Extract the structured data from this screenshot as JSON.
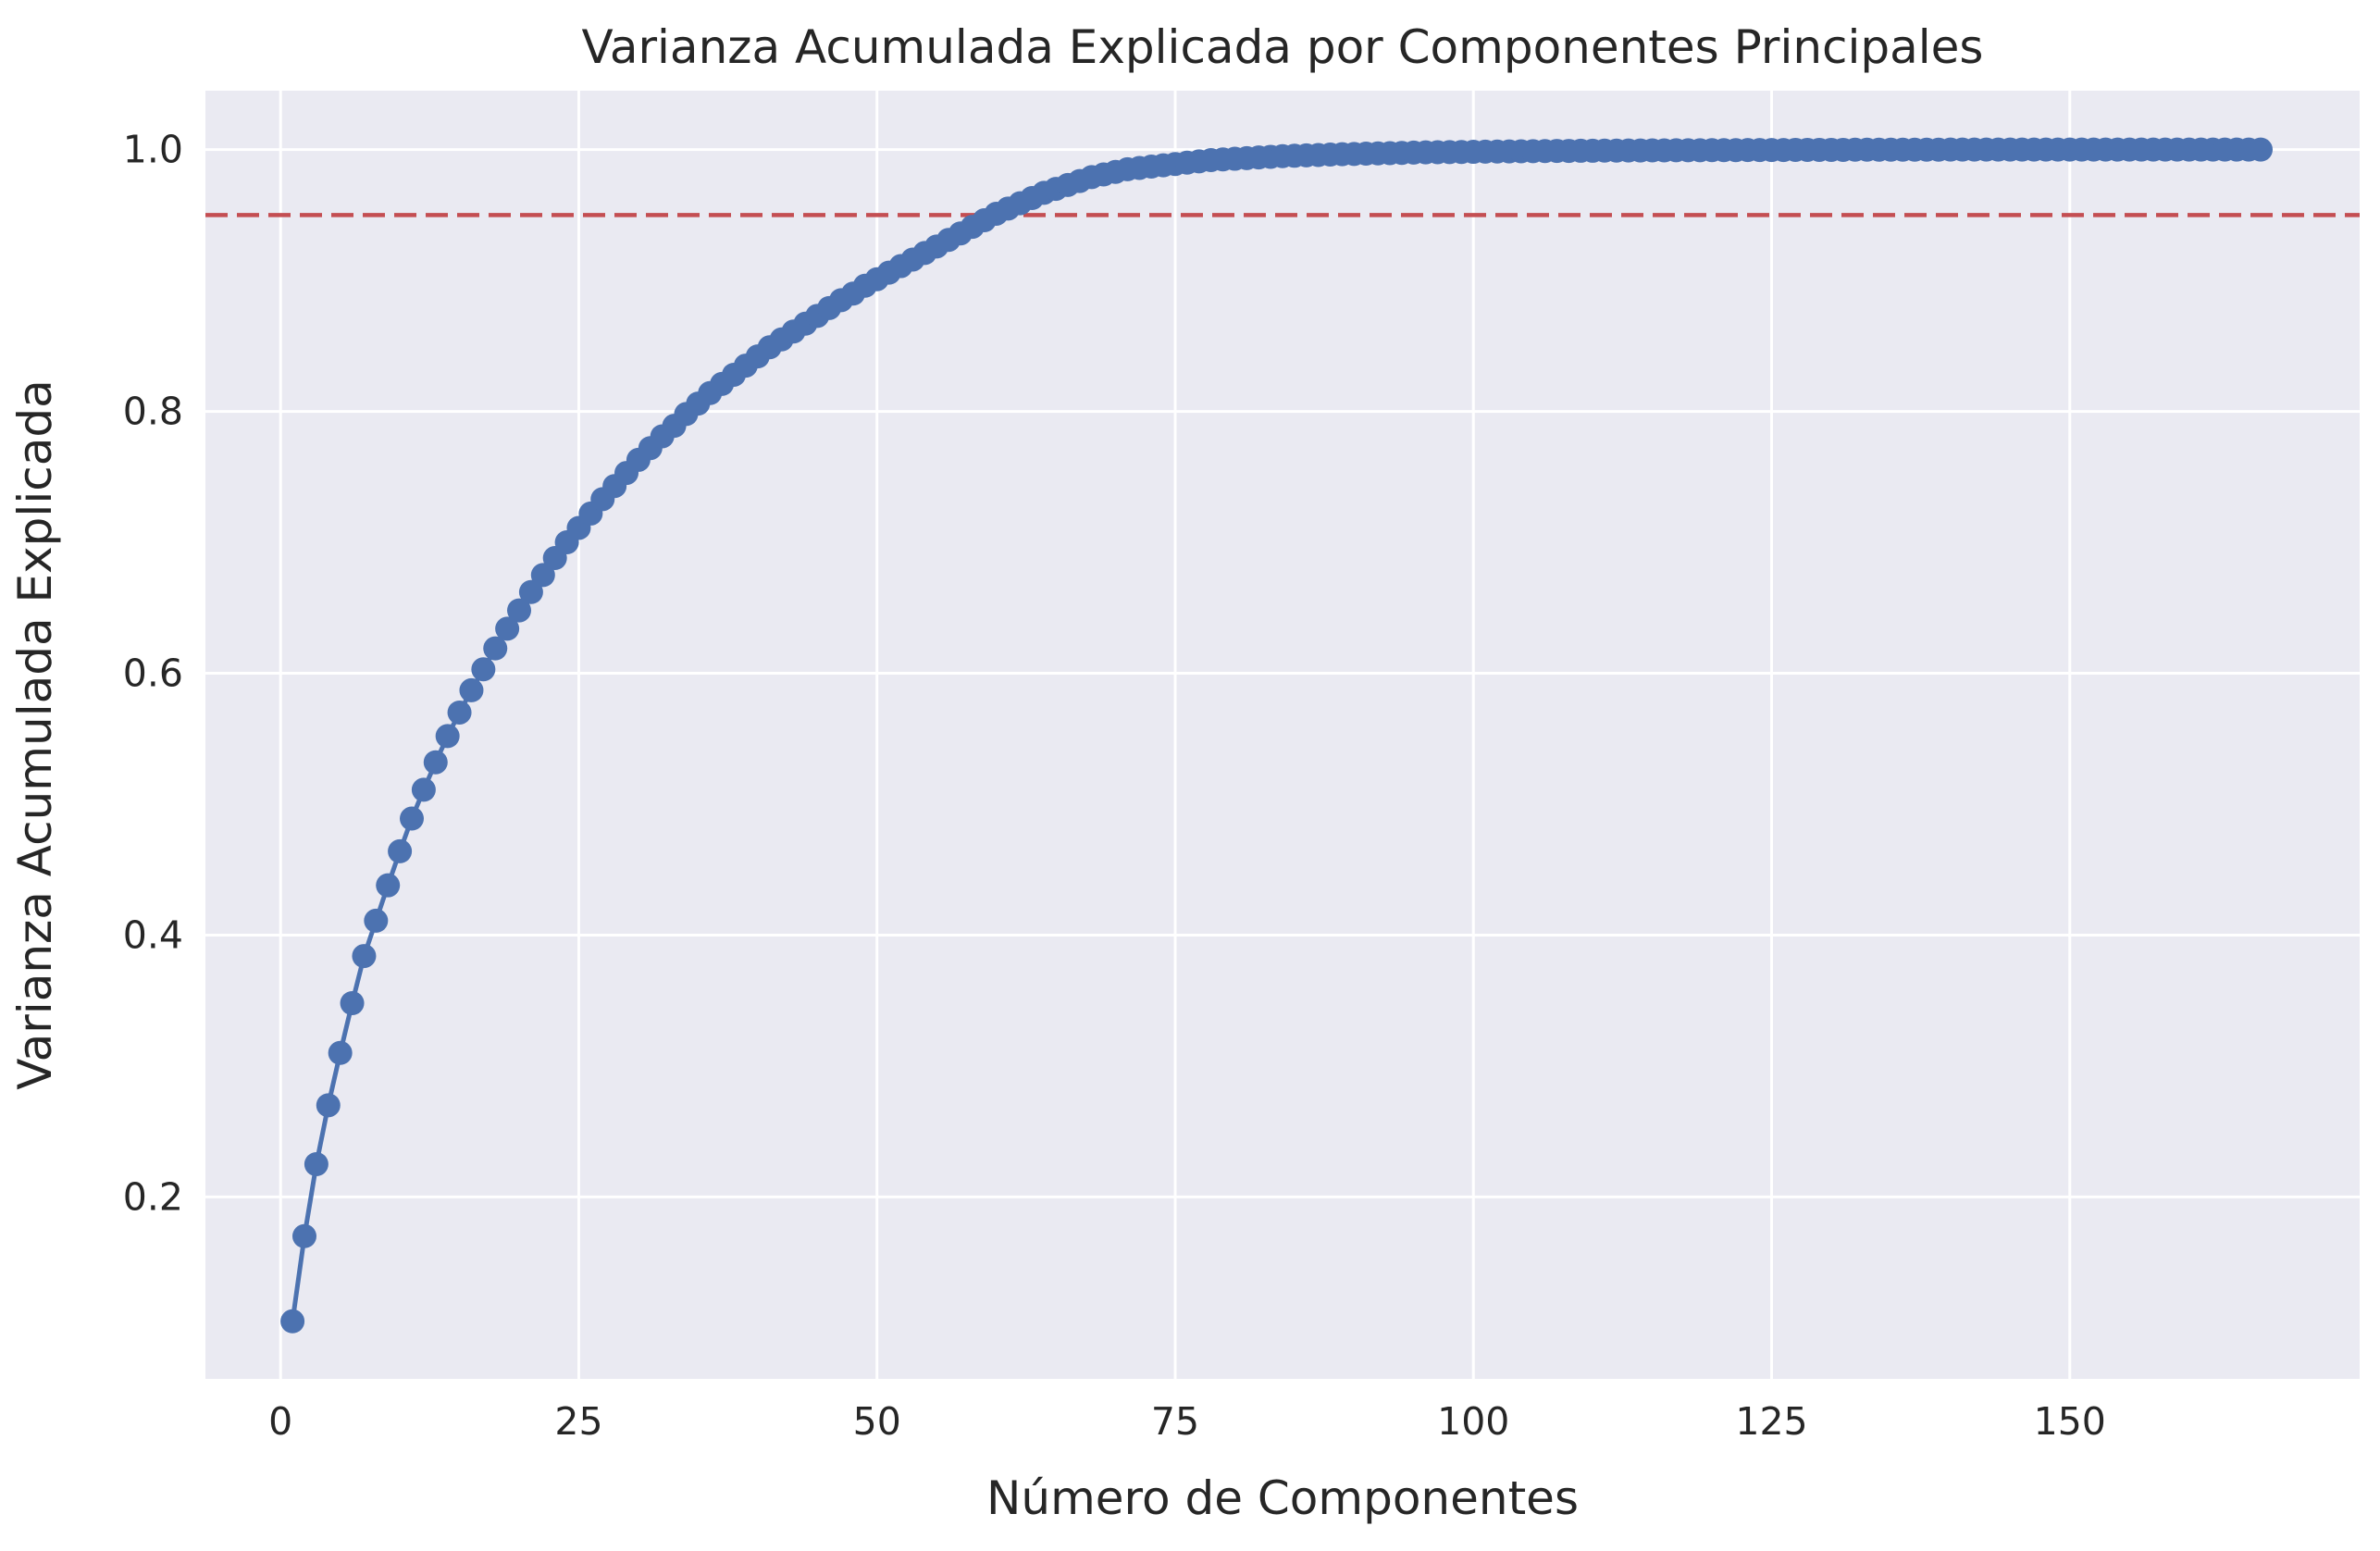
{
  "chart_data": {
    "type": "line",
    "title": "Varianza Acumulada Explicada por Componentes Principales",
    "xlabel": "Número de Componentes",
    "ylabel": "Varianza Acumulada Explicada",
    "xlim": [
      -6.3,
      174.3
    ],
    "ylim": [
      0.061,
      1.045
    ],
    "xticks": [
      0,
      25,
      50,
      75,
      100,
      125,
      150
    ],
    "yticks": [
      0.2,
      0.4,
      0.6,
      0.8,
      1.0
    ],
    "xtick_labels": [
      "0",
      "25",
      "50",
      "75",
      "100",
      "125",
      "150"
    ],
    "ytick_labels": [
      "0.2",
      "0.4",
      "0.6",
      "0.8",
      "1.0"
    ],
    "grid": true,
    "n_components": 166,
    "series": [
      {
        "marker": "circle",
        "color": "#4c72b0",
        "x_start": 1,
        "x_step": 1,
        "values": [
          0.105,
          0.17,
          0.225,
          0.27,
          0.31,
          0.348,
          0.384,
          0.411,
          0.438,
          0.464,
          0.489,
          0.511,
          0.532,
          0.552,
          0.57,
          0.587,
          0.603,
          0.619,
          0.634,
          0.648,
          0.662,
          0.675,
          0.688,
          0.7,
          0.711,
          0.722,
          0.733,
          0.743,
          0.753,
          0.763,
          0.772,
          0.781,
          0.789,
          0.798,
          0.806,
          0.814,
          0.821,
          0.828,
          0.835,
          0.842,
          0.849,
          0.855,
          0.861,
          0.867,
          0.873,
          0.879,
          0.885,
          0.89,
          0.896,
          0.901,
          0.906,
          0.911,
          0.916,
          0.921,
          0.926,
          0.931,
          0.936,
          0.941,
          0.946,
          0.951,
          0.955,
          0.959,
          0.963,
          0.967,
          0.97,
          0.973,
          0.976,
          0.979,
          0.981,
          0.983,
          0.985,
          0.986,
          0.987,
          0.988,
          0.989,
          0.99,
          0.991,
          0.992,
          0.9925,
          0.993,
          0.9935,
          0.994,
          0.9945,
          0.995,
          0.9953,
          0.9956,
          0.9959,
          0.9962,
          0.9965,
          0.9967,
          0.9969,
          0.9971,
          0.9973,
          0.9975,
          0.9977,
          0.9979,
          0.998,
          0.9981,
          0.9982,
          0.9983,
          0.9984,
          0.9985,
          0.9986,
          0.9987,
          0.9988,
          0.9989,
          0.999,
          0.999,
          0.9991,
          0.9991,
          0.9992,
          0.9992,
          0.9993,
          0.9993,
          0.9994,
          0.9994,
          0.9995,
          0.9995,
          0.9995,
          0.9996,
          0.9996,
          0.9996,
          0.9997,
          0.9997,
          0.9997,
          0.9997,
          0.9998,
          0.9998,
          0.9998,
          0.9998,
          0.9998,
          0.9999,
          0.9999,
          0.9999,
          0.9999,
          0.9999,
          0.9999,
          0.9999,
          0.9999,
          1.0,
          1.0,
          1.0,
          1.0,
          1.0,
          1.0,
          1.0,
          1.0,
          1.0,
          1.0,
          1.0,
          1.0,
          1.0,
          1.0,
          1.0,
          1.0,
          1.0,
          1.0,
          1.0,
          1.0,
          1.0,
          1.0,
          1.0,
          1.0,
          1.0,
          1.0,
          1.0
        ]
      }
    ],
    "reference_line": {
      "orientation": "horizontal",
      "y": 0.95,
      "style": "dashed",
      "color": "#c44e52"
    },
    "colors": {
      "background": "#eaeaf2",
      "grid": "#ffffff",
      "text": "#262626"
    }
  }
}
